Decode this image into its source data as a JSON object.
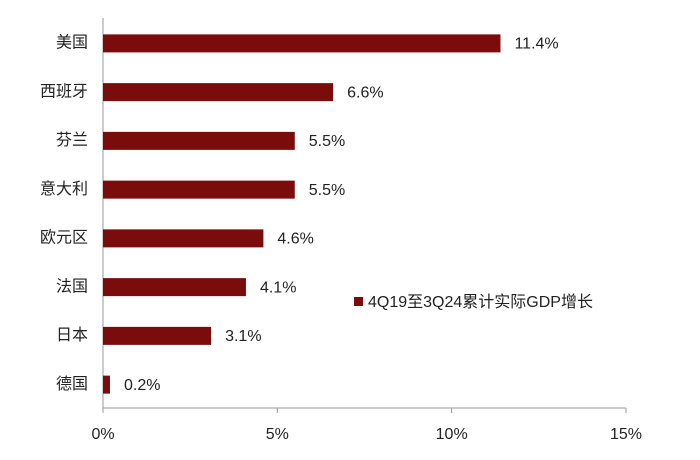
{
  "chart_data": {
    "type": "bar",
    "orientation": "horizontal",
    "categories": [
      "美国",
      "西班牙",
      "芬兰",
      "意大利",
      "欧元区",
      "法国",
      "日本",
      "德国"
    ],
    "series": [
      {
        "name": "4Q19至3Q24累计实际GDP增长",
        "color": "#7b0c0c",
        "values": [
          11.4,
          6.6,
          5.5,
          5.5,
          4.6,
          4.1,
          3.1,
          0.2
        ],
        "value_labels": [
          "11.4%",
          "6.6%",
          "5.5%",
          "5.5%",
          "4.6%",
          "4.1%",
          "3.1%",
          "0.2%"
        ]
      }
    ],
    "xlim": [
      0,
      15
    ],
    "xticks": [
      {
        "value": 0,
        "label": "0%"
      },
      {
        "value": 5,
        "label": "5%"
      },
      {
        "value": 10,
        "label": "10%"
      },
      {
        "value": 15,
        "label": "15%"
      }
    ],
    "grid": false
  }
}
